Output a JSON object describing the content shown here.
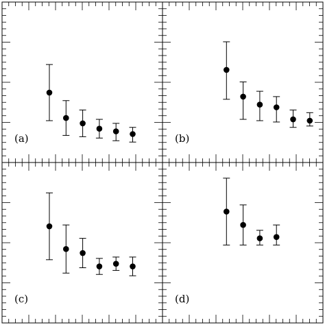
{
  "chart_data": [
    {
      "type": "scatter",
      "label": "(a)",
      "xlabel": "",
      "ylabel": "",
      "xlim": [
        0,
        9
      ],
      "ylim": [
        0,
        10
      ],
      "points": [
        {
          "x": 2,
          "y": 4.1,
          "ylo": 2.0,
          "yhi": 6.2
        },
        {
          "x": 3,
          "y": 2.2,
          "ylo": 0.9,
          "yhi": 3.5
        },
        {
          "x": 4,
          "y": 1.8,
          "ylo": 0.8,
          "yhi": 2.8
        },
        {
          "x": 5,
          "y": 1.4,
          "ylo": 0.7,
          "yhi": 2.1
        },
        {
          "x": 6,
          "y": 1.2,
          "ylo": 0.5,
          "yhi": 1.8
        },
        {
          "x": 7,
          "y": 1.0,
          "ylo": 0.4,
          "yhi": 1.5
        }
      ]
    },
    {
      "type": "scatter",
      "label": "(b)",
      "xlabel": "",
      "ylabel": "",
      "xlim": [
        0,
        9
      ],
      "ylim": [
        0,
        10
      ],
      "points": [
        {
          "x": 3,
          "y": 5.8,
          "ylo": 3.6,
          "yhi": 7.9
        },
        {
          "x": 4,
          "y": 3.8,
          "ylo": 2.1,
          "yhi": 4.9
        },
        {
          "x": 5,
          "y": 3.2,
          "ylo": 2.0,
          "yhi": 4.2
        },
        {
          "x": 6,
          "y": 3.0,
          "ylo": 1.9,
          "yhi": 3.8
        },
        {
          "x": 7,
          "y": 2.1,
          "ylo": 1.5,
          "yhi": 2.8
        },
        {
          "x": 8,
          "y": 2.0,
          "ylo": 1.6,
          "yhi": 2.6
        }
      ]
    },
    {
      "type": "scatter",
      "label": "(c)",
      "xlabel": "",
      "ylabel": "",
      "xlim": [
        0,
        9
      ],
      "ylim": [
        0,
        10
      ],
      "points": [
        {
          "x": 2,
          "y": 6.1,
          "ylo": 3.6,
          "yhi": 8.6
        },
        {
          "x": 3,
          "y": 4.4,
          "ylo": 2.6,
          "yhi": 6.2
        },
        {
          "x": 4,
          "y": 4.1,
          "ylo": 3.0,
          "yhi": 5.2
        },
        {
          "x": 5,
          "y": 3.1,
          "ylo": 2.5,
          "yhi": 3.7
        },
        {
          "x": 6,
          "y": 3.3,
          "ylo": 2.8,
          "yhi": 3.8
        },
        {
          "x": 7,
          "y": 3.1,
          "ylo": 2.4,
          "yhi": 3.8
        }
      ]
    },
    {
      "type": "scatter",
      "label": "(d)",
      "xlabel": "",
      "ylabel": "",
      "xlim": [
        0,
        9
      ],
      "ylim": [
        0,
        10
      ],
      "points": [
        {
          "x": 3,
          "y": 7.2,
          "ylo": 4.7,
          "yhi": 9.7
        },
        {
          "x": 4,
          "y": 6.2,
          "ylo": 4.7,
          "yhi": 7.7
        },
        {
          "x": 5,
          "y": 5.2,
          "ylo": 4.7,
          "yhi": 5.8
        },
        {
          "x": 6,
          "y": 5.3,
          "ylo": 4.7,
          "yhi": 6.2
        }
      ]
    }
  ]
}
